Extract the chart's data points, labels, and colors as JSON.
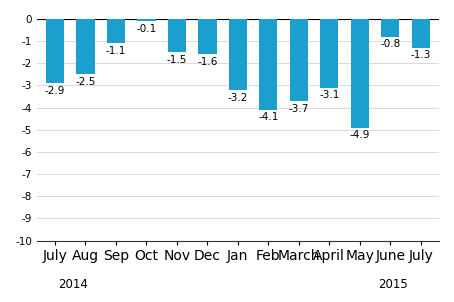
{
  "categories": [
    "July",
    "Aug",
    "Sep",
    "Oct",
    "Nov",
    "Dec",
    "Jan",
    "Feb",
    "March",
    "April",
    "May",
    "June",
    "July"
  ],
  "values": [
    -2.9,
    -2.5,
    -1.1,
    -0.1,
    -1.5,
    -1.6,
    -3.2,
    -4.1,
    -3.7,
    -3.1,
    -4.9,
    -0.8,
    -1.3
  ],
  "bar_color": "#1a9fce",
  "ylim": [
    -10,
    0
  ],
  "yticks": [
    0,
    -1,
    -2,
    -3,
    -4,
    -5,
    -6,
    -7,
    -8,
    -9,
    -10
  ],
  "label_fontsize": 7.5,
  "tick_fontsize": 7.5,
  "year_fontsize": 8.5
}
